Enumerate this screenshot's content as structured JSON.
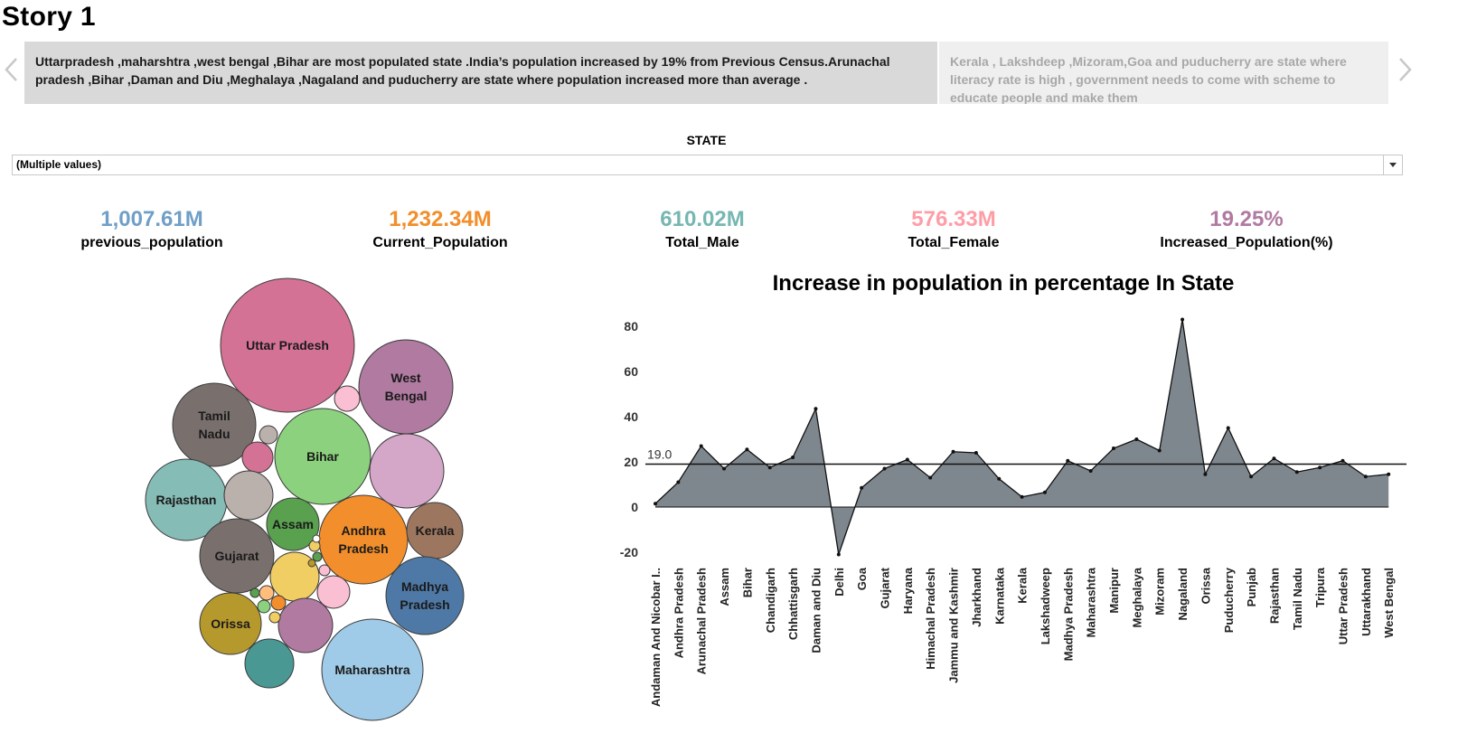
{
  "story": {
    "title": "Story 1"
  },
  "captions": [
    {
      "text": "Uttarpradesh ,maharshtra ,west bengal ,Bihar are most populated state .India’s population increased by 19% from Previous Census.Arunachal pradesh ,Bihar ,Daman and Diu ,Meghalaya ,Nagaland and puducherry are state where population increased more than average ."
    },
    {
      "text": "Kerala , Lakshdeep ,Mizoram,Goa and puducherry are state where literacy rate is high , government needs to come with scheme to educate people and make them"
    }
  ],
  "filter": {
    "label": "STATE",
    "value": "(Multiple values)"
  },
  "kpis": [
    {
      "value": "1,007.61M",
      "label": "previous_population",
      "color": "#6f9fc8"
    },
    {
      "value": "1,232.34M",
      "label": "Current_Population",
      "color": "#f28e2b"
    },
    {
      "value": "610.02M",
      "label": "Total_Male",
      "color": "#76b7b2"
    },
    {
      "value": "576.33M",
      "label": "Total_Female",
      "color": "#ff9da7"
    },
    {
      "value": "19.25%",
      "label": "Increased_Population(%)",
      "color": "#b07aa1"
    }
  ],
  "bubbles": [
    {
      "label": "Uttar Pradesh",
      "color": "#d37295",
      "lines": [
        "Uttar Pradesh"
      ]
    },
    {
      "label": "West Bengal",
      "color": "#b07aa1",
      "lines": [
        "West",
        "Bengal"
      ]
    },
    {
      "label": "Tamil Nadu",
      "color": "#79706e",
      "lines": [
        "Tamil",
        "Nadu"
      ]
    },
    {
      "label": "Bihar",
      "color": "#8cd17d",
      "lines": [
        "Bihar"
      ]
    },
    {
      "label": "Rajasthan",
      "color": "#86bcb6",
      "lines": [
        "Rajasthan"
      ]
    },
    {
      "label": "Assam",
      "color": "#59a14f",
      "lines": [
        "Assam"
      ]
    },
    {
      "label": "Andhra Pradesh",
      "color": "#f28e2b",
      "lines": [
        "Andhra",
        "Pradesh"
      ]
    },
    {
      "label": "Kerala",
      "color": "#9d7660",
      "lines": [
        "Kerala"
      ]
    },
    {
      "label": "Gujarat",
      "color": "#79706e",
      "lines": [
        "Gujarat"
      ]
    },
    {
      "label": "Madhya Pradesh",
      "color": "#4e79a7",
      "lines": [
        "Madhya",
        "Pradesh"
      ]
    },
    {
      "label": "Orissa",
      "color": "#b6992d",
      "lines": [
        "Orissa"
      ]
    },
    {
      "label": "Maharashtra",
      "color": "#a0cbe8",
      "lines": [
        "Maharashtra"
      ]
    }
  ],
  "chart_data": {
    "type": "area",
    "title": "Increase in population in percentage In State",
    "reference_line": {
      "value": 19.0,
      "label": "19.0"
    },
    "ylim": [
      -24,
      86
    ],
    "yticks": [
      80,
      60,
      40,
      20,
      0,
      -20
    ],
    "grid": false,
    "categories": [
      "Andaman And Nicobar I..",
      "Andhra Pradesh",
      "Arunachal Pradesh",
      "Assam",
      "Bihar",
      "Chandigarh",
      "Chhattisgarh",
      "Daman and Diu",
      "Delhi",
      "Goa",
      "Gujarat",
      "Haryana",
      "Himachal Pradesh",
      "Jammu and Kashmir",
      "Jharkhand",
      "Karnataka",
      "Kerala",
      "Lakshadweep",
      "Madhya Pradesh",
      "Maharashtra",
      "Manipur",
      "Meghalaya",
      "Mizoram",
      "Nagaland",
      "Orissa",
      "Puducherry",
      "Punjab",
      "Rajasthan",
      "Tamil Nadu",
      "Tripura",
      "Uttar Pradesh",
      "Uttarakhand",
      "West Bengal"
    ],
    "values": [
      1.5,
      11,
      27,
      17,
      25.5,
      17.5,
      22,
      43.5,
      -21,
      8.5,
      17,
      21,
      13,
      24.5,
      24,
      12.5,
      4.5,
      6.5,
      20.5,
      16,
      26,
      30,
      25,
      83,
      14.5,
      35,
      13.5,
      21.5,
      15.5,
      17.5,
      20.5,
      13.5,
      14.5
    ],
    "color": "#7f878e"
  }
}
